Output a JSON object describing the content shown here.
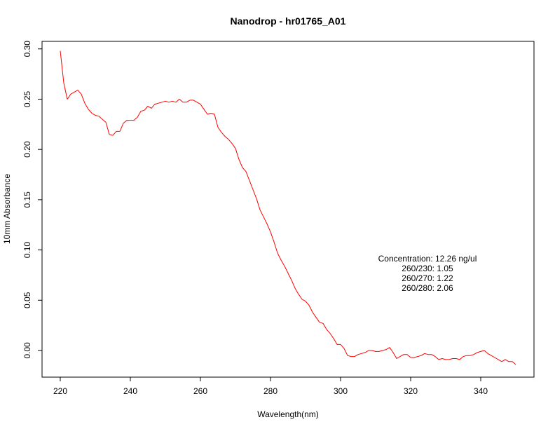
{
  "chart_data": {
    "type": "line",
    "title": "Nanodrop - hr01765_A01",
    "xlabel": "Wavelength(nm)",
    "ylabel": "10mm Absorbance",
    "xlim": [
      214.8,
      355.2
    ],
    "ylim": [
      -0.0265,
      0.3075
    ],
    "x_ticks": [
      220,
      240,
      260,
      280,
      300,
      320,
      340
    ],
    "y_ticks": [
      0.0,
      0.05,
      0.1,
      0.15,
      0.2,
      0.25,
      0.3
    ],
    "y_tick_labels": [
      "0.00",
      "0.05",
      "0.10",
      "0.15",
      "0.20",
      "0.25",
      "0.30"
    ],
    "grid": false,
    "series": [
      {
        "color": "#ff0000",
        "x": [
          220,
          221,
          222,
          223,
          224,
          225,
          226,
          227,
          228,
          229,
          230,
          231,
          232,
          233,
          234,
          235,
          236,
          237,
          238,
          239,
          240,
          241,
          242,
          243,
          244,
          245,
          246,
          247,
          248,
          249,
          250,
          251,
          252,
          253,
          254,
          255,
          256,
          257,
          258,
          259,
          260,
          261,
          262,
          263,
          264,
          265,
          266,
          267,
          268,
          269,
          270,
          271,
          272,
          273,
          274,
          275,
          276,
          277,
          278,
          279,
          280,
          281,
          282,
          283,
          284,
          285,
          286,
          287,
          288,
          289,
          290,
          291,
          292,
          293,
          294,
          295,
          296,
          297,
          298,
          299,
          300,
          301,
          302,
          303,
          304,
          305,
          306,
          307,
          308,
          309,
          310,
          311,
          312,
          313,
          314,
          315,
          316,
          317,
          318,
          319,
          320,
          321,
          322,
          323,
          324,
          325,
          326,
          327,
          328,
          329,
          330,
          331,
          332,
          333,
          334,
          335,
          336,
          337,
          338,
          339,
          340,
          341,
          342,
          343,
          344,
          345,
          346,
          347,
          348,
          349,
          350
        ],
        "y": [
          0.298,
          0.266,
          0.25,
          0.255,
          0.257,
          0.259,
          0.255,
          0.246,
          0.24,
          0.236,
          0.234,
          0.233,
          0.23,
          0.227,
          0.215,
          0.214,
          0.218,
          0.218,
          0.226,
          0.229,
          0.229,
          0.229,
          0.232,
          0.238,
          0.239,
          0.243,
          0.241,
          0.245,
          0.246,
          0.247,
          0.248,
          0.247,
          0.248,
          0.247,
          0.25,
          0.247,
          0.247,
          0.249,
          0.249,
          0.247,
          0.245,
          0.24,
          0.235,
          0.236,
          0.235,
          0.222,
          0.217,
          0.213,
          0.21,
          0.206,
          0.201,
          0.19,
          0.182,
          0.178,
          0.169,
          0.16,
          0.151,
          0.14,
          0.133,
          0.126,
          0.118,
          0.108,
          0.097,
          0.09,
          0.084,
          0.077,
          0.07,
          0.062,
          0.056,
          0.051,
          0.049,
          0.045,
          0.038,
          0.033,
          0.028,
          0.027,
          0.021,
          0.017,
          0.012,
          0.006,
          0.006,
          0.002,
          -0.005,
          -0.006,
          -0.006,
          -0.004,
          -0.003,
          -0.002,
          0.0,
          0.0,
          -0.001,
          -0.001,
          0.0,
          0.001,
          0.003,
          -0.002,
          -0.008,
          -0.006,
          -0.004,
          -0.004,
          -0.007,
          -0.007,
          -0.006,
          -0.005,
          -0.003,
          -0.004,
          -0.004,
          -0.006,
          -0.009,
          -0.008,
          -0.009,
          -0.009,
          -0.008,
          -0.008,
          -0.009,
          -0.006,
          -0.005,
          -0.005,
          -0.004,
          -0.002,
          -0.001,
          0.0,
          -0.003,
          -0.005,
          -0.007,
          -0.009,
          -0.011,
          -0.009,
          -0.011,
          -0.011,
          -0.014
        ]
      }
    ],
    "annotation": {
      "lines": [
        "Concentration: 12.26 ng/ul",
        "260/230: 1.05",
        "260/270: 1.22",
        "260/280: 2.06"
      ]
    }
  }
}
